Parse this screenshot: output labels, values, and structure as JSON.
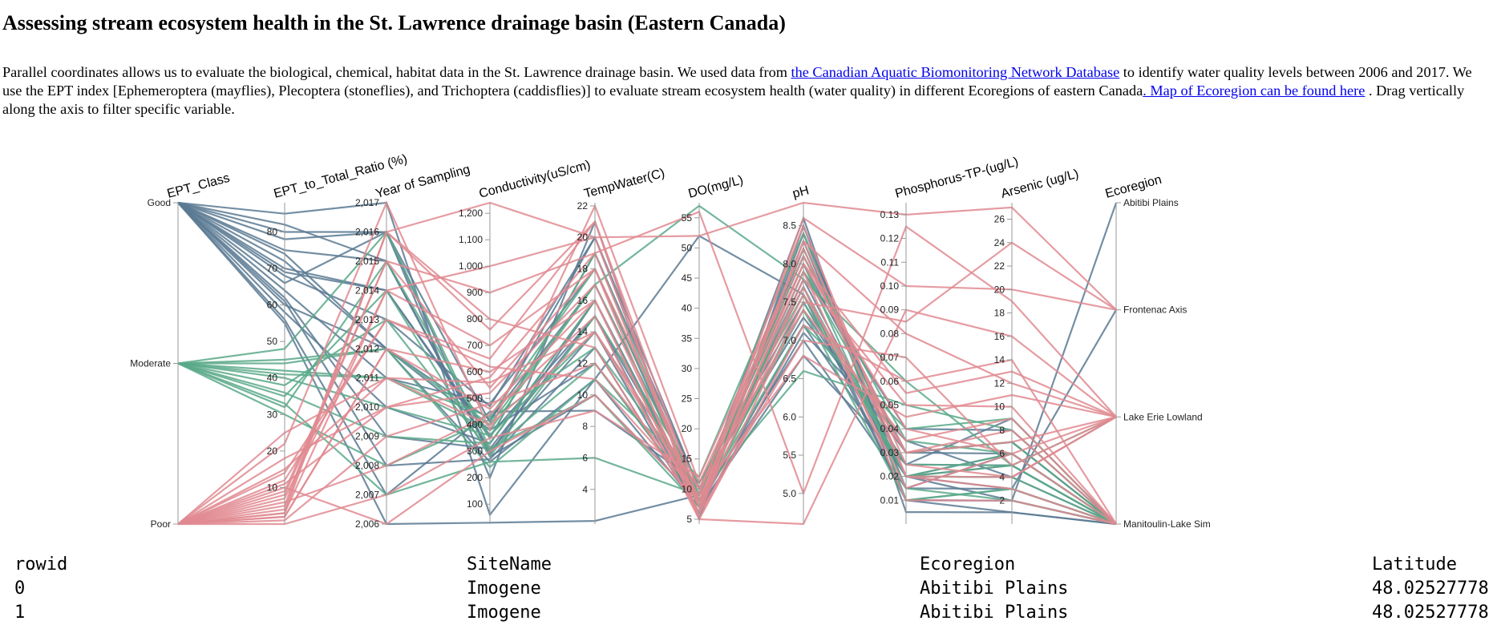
{
  "page": {
    "title": "Assessing stream ecosystem health in the St. Lawrence drainage basin (Eastern Canada)",
    "intro_before": "Parallel coordinates allows us to evaluate the biological, chemical, habitat data in the St. Lawrence drainage basin. We used data from ",
    "link1": "the Canadian Aquatic Biomonitoring Network Database",
    "intro_middle": " to identify water quality levels between 2006 and 2017. We use the EPT index [Ephemeroptera (mayflies), Plecoptera (stoneflies), and Trichoptera (caddisflies)] to evaluate stream ecosystem health (water quality) in different Ecoregions of eastern Canada",
    "link2": ". Map of Ecoregion can be found here",
    "intro_after": " . Drag vertically along the axis to filter specific variable."
  },
  "colors": {
    "Good": "#5b7a93",
    "Moderate": "#5aa98a",
    "Poor": "#e08a90",
    "axis": "#999999"
  },
  "chart_data": {
    "type": "parallel_coordinates",
    "axes": [
      {
        "name": "EPT_Class",
        "kind": "ordinal",
        "categories": [
          "Good",
          "Moderate",
          "Poor"
        ],
        "ticks": [
          "Good",
          "Moderate",
          "Poor"
        ]
      },
      {
        "name": "EPT_to_Total_Ratio (%)",
        "kind": "linear",
        "domain": [
          0,
          88
        ],
        "ticks": [
          "10",
          "20",
          "30",
          "40",
          "50",
          "60",
          "70",
          "80"
        ],
        "tick_values": [
          10,
          20,
          30,
          40,
          50,
          60,
          70,
          80
        ]
      },
      {
        "name": "Year of Sampling",
        "kind": "linear",
        "domain": [
          2006,
          2017
        ],
        "ticks": [
          "2,006",
          "2,007",
          "2,008",
          "2,009",
          "2,010",
          "2,011",
          "2,012",
          "2,013",
          "2,014",
          "2,015",
          "2,016",
          "2,017"
        ],
        "tick_values": [
          2006,
          2007,
          2008,
          2009,
          2010,
          2011,
          2012,
          2013,
          2014,
          2015,
          2016,
          2017
        ]
      },
      {
        "name": "Conductivity(uS/cm)",
        "kind": "linear",
        "domain": [
          25,
          1240
        ],
        "ticks": [
          "100",
          "200",
          "300",
          "400",
          "500",
          "600",
          "700",
          "800",
          "900",
          "1,000",
          "1,100",
          "1,200"
        ],
        "tick_values": [
          100,
          200,
          300,
          400,
          500,
          600,
          700,
          800,
          900,
          1000,
          1100,
          1200
        ]
      },
      {
        "name": "TempWater(C)",
        "kind": "linear",
        "domain": [
          1.8,
          22.2
        ],
        "ticks": [
          "4",
          "6",
          "8",
          "10",
          "12",
          "14",
          "16",
          "18",
          "20",
          "22"
        ],
        "tick_values": [
          4,
          6,
          8,
          10,
          12,
          14,
          16,
          18,
          20,
          22
        ]
      },
      {
        "name": "DO(mg/L)",
        "kind": "linear",
        "domain": [
          4.2,
          57.5
        ],
        "ticks": [
          "5",
          "10",
          "15",
          "20",
          "25",
          "30",
          "35",
          "40",
          "45",
          "50",
          "55"
        ],
        "tick_values": [
          5,
          10,
          15,
          20,
          25,
          30,
          35,
          40,
          45,
          50,
          55
        ]
      },
      {
        "name": "pH",
        "kind": "linear",
        "domain": [
          4.6,
          8.8
        ],
        "ticks": [
          "5.0",
          "5.5",
          "6.0",
          "6.5",
          "7.0",
          "7.5",
          "8.0",
          "8.5"
        ],
        "tick_values": [
          5.0,
          5.5,
          6.0,
          6.5,
          7.0,
          7.5,
          8.0,
          8.5
        ]
      },
      {
        "name": "Phosphorus-TP-(ug/L)",
        "kind": "linear",
        "domain": [
          0,
          0.135
        ],
        "ticks": [
          "0.01",
          "0.02",
          "0.03",
          "0.04",
          "0.05",
          "0.06",
          "0.07",
          "0.08",
          "0.09",
          "0.10",
          "0.11",
          "0.12",
          "0.13"
        ],
        "tick_values": [
          0.01,
          0.02,
          0.03,
          0.04,
          0.05,
          0.06,
          0.07,
          0.08,
          0.09,
          0.1,
          0.11,
          0.12,
          0.13
        ]
      },
      {
        "name": "Arsenic (ug/L)",
        "kind": "linear",
        "domain": [
          0,
          27.4
        ],
        "ticks": [
          "2",
          "4",
          "6",
          "8",
          "10",
          "12",
          "14",
          "16",
          "18",
          "20",
          "22",
          "24",
          "26"
        ],
        "tick_values": [
          2,
          4,
          6,
          8,
          10,
          12,
          14,
          16,
          18,
          20,
          22,
          24,
          26
        ]
      },
      {
        "name": "Ecoregion",
        "kind": "ordinal",
        "categories": [
          "Abitibi Plains",
          "Frontenac Axis",
          "Lake Erie Lowland",
          "Manitoulin-Lake Sim"
        ],
        "ticks": [
          "Abitibi Plains",
          "Frontenac Axis",
          "Lake Erie Lowland",
          "Manitoulin-Lake Sim"
        ]
      }
    ],
    "series_note": "Each line is one sampling record; color encodes EPT_Class",
    "lines": [
      {
        "class": "Good",
        "values": [
          "Good",
          85,
          2017,
          60,
          11,
          52,
          7.6,
          0.01,
          1,
          "Manitoulin-Lake Sim"
        ]
      },
      {
        "class": "Good",
        "values": [
          "Good",
          80,
          2016,
          280,
          10,
          8,
          7.8,
          0.02,
          2,
          "Abitibi Plains"
        ]
      },
      {
        "class": "Good",
        "values": [
          "Good",
          75,
          2015,
          300,
          14,
          6,
          8.3,
          0.015,
          3,
          "Manitoulin-Lake Sim"
        ]
      },
      {
        "class": "Good",
        "values": [
          "Good",
          72,
          2012,
          420,
          17,
          9,
          8.0,
          0.03,
          6,
          "Manitoulin-Lake Sim"
        ]
      },
      {
        "class": "Good",
        "values": [
          "Good",
          70,
          2014,
          350,
          19,
          10,
          7.4,
          0.025,
          5,
          "Manitoulin-Lake Sim"
        ]
      },
      {
        "class": "Good",
        "values": [
          "Good",
          68,
          2013,
          470,
          20,
          7,
          7.2,
          0.02,
          4,
          "Lake Erie Lowland"
        ]
      },
      {
        "class": "Good",
        "values": [
          "Good",
          66,
          2016,
          200,
          21,
          5,
          8.5,
          0.01,
          2,
          "Manitoulin-Lake Sim"
        ]
      },
      {
        "class": "Good",
        "values": [
          "Good",
          64,
          2011,
          480,
          18,
          8,
          7.9,
          0.04,
          8,
          "Manitoulin-Lake Sim"
        ]
      },
      {
        "class": "Good",
        "values": [
          "Good",
          62,
          2009,
          310,
          15,
          9,
          8.1,
          0.03,
          7,
          "Manitoulin-Lake Sim"
        ]
      },
      {
        "class": "Good",
        "values": [
          "Good",
          61,
          2008,
          270,
          13,
          6,
          8.4,
          0.02,
          3,
          "Frontenac Axis"
        ]
      },
      {
        "class": "Good",
        "values": [
          "Good",
          60,
          2012,
          380,
          12,
          8,
          7.0,
          0.015,
          6,
          "Manitoulin-Lake Sim"
        ]
      },
      {
        "class": "Good",
        "values": [
          "Good",
          58,
          2010,
          330,
          16,
          7,
          6.8,
          0.025,
          9,
          "Manitoulin-Lake Sim"
        ]
      },
      {
        "class": "Good",
        "values": [
          "Good",
          56,
          2007,
          450,
          9,
          11,
          7.5,
          0.02,
          5,
          "Manitoulin-Lake Sim"
        ]
      },
      {
        "class": "Good",
        "values": [
          "Good",
          55,
          2006,
          30,
          2,
          9,
          8.6,
          0.005,
          1,
          "Manitoulin-Lake Sim"
        ]
      },
      {
        "class": "Good",
        "values": [
          "Good",
          82,
          2015,
          290,
          16,
          8,
          7.7,
          0.01,
          2,
          "Manitoulin-Lake Sim"
        ]
      },
      {
        "class": "Good",
        "values": [
          "Good",
          78,
          2016,
          410,
          20,
          10,
          7.3,
          0.03,
          7,
          "Manitoulin-Lake Sim"
        ]
      },
      {
        "class": "Good",
        "values": [
          "Good",
          74,
          2012,
          260,
          11,
          7,
          8.2,
          0.02,
          6,
          "Manitoulin-Lake Sim"
        ]
      },
      {
        "class": "Good",
        "values": [
          "Good",
          69,
          2014,
          360,
          15,
          6,
          7.1,
          0.035,
          4,
          "Manitoulin-Lake Sim"
        ]
      },
      {
        "class": "Moderate",
        "values": [
          "Moderate",
          45,
          2012,
          400,
          17,
          57,
          7.8,
          0.06,
          5,
          "Manitoulin-Lake Sim"
        ]
      },
      {
        "class": "Moderate",
        "values": [
          "Moderate",
          42,
          2011,
          430,
          18,
          9,
          6.6,
          0.05,
          8,
          "Manitoulin-Lake Sim"
        ]
      },
      {
        "class": "Moderate",
        "values": [
          "Moderate",
          40,
          2010,
          360,
          14,
          10,
          8.2,
          0.02,
          6,
          "Manitoulin-Lake Sim"
        ]
      },
      {
        "class": "Moderate",
        "values": [
          "Moderate",
          38,
          2013,
          300,
          12,
          8,
          7.4,
          0.01,
          3,
          "Manitoulin-Lake Sim"
        ]
      },
      {
        "class": "Moderate",
        "values": [
          "Moderate",
          36,
          2009,
          330,
          16,
          7,
          7.9,
          0.03,
          7,
          "Manitoulin-Lake Sim"
        ]
      },
      {
        "class": "Moderate",
        "values": [
          "Moderate",
          35,
          2014,
          280,
          15,
          11,
          7.6,
          0.02,
          5,
          "Manitoulin-Lake Sim"
        ]
      },
      {
        "class": "Moderate",
        "values": [
          "Moderate",
          33,
          2007,
          260,
          6,
          9,
          8.0,
          0.015,
          2,
          "Manitoulin-Lake Sim"
        ]
      },
      {
        "class": "Moderate",
        "values": [
          "Moderate",
          32,
          2015,
          350,
          19,
          8,
          7.2,
          0.04,
          9,
          "Manitoulin-Lake Sim"
        ]
      },
      {
        "class": "Moderate",
        "values": [
          "Moderate",
          30,
          2008,
          420,
          13,
          10,
          7.7,
          0.02,
          4,
          "Manitoulin-Lake Sim"
        ]
      },
      {
        "class": "Moderate",
        "values": [
          "Moderate",
          44,
          2012,
          240,
          11,
          12,
          8.4,
          0.01,
          3,
          "Manitoulin-Lake Sim"
        ]
      },
      {
        "class": "Moderate",
        "values": [
          "Moderate",
          48,
          2016,
          310,
          10,
          7,
          7.5,
          0.025,
          5,
          "Lake Erie Lowland"
        ]
      },
      {
        "class": "Moderate",
        "values": [
          "Moderate",
          41,
          2011,
          380,
          17,
          9,
          8.1,
          0.035,
          6,
          "Manitoulin-Lake Sim"
        ]
      },
      {
        "class": "Poor",
        "values": [
          "Poor",
          5,
          2016,
          1240,
          20,
          52,
          8.8,
          0.13,
          27,
          "Frontenac Axis"
        ]
      },
      {
        "class": "Poor",
        "values": [
          "Poor",
          8,
          2015,
          900,
          19,
          56,
          5.0,
          0.125,
          19,
          "Lake Erie Lowland"
        ]
      },
      {
        "class": "Poor",
        "values": [
          "Poor",
          3,
          2014,
          700,
          18,
          5,
          4.6,
          0.09,
          16,
          "Lake Erie Lowland"
        ]
      },
      {
        "class": "Poor",
        "values": [
          "Poor",
          12,
          2013,
          650,
          21,
          8,
          8.3,
          0.08,
          12,
          "Lake Erie Lowland"
        ]
      },
      {
        "class": "Poor",
        "values": [
          "Poor",
          2,
          2012,
          600,
          16,
          6,
          7.8,
          0.05,
          10,
          "Manitoulin-Lake Sim"
        ]
      },
      {
        "class": "Poor",
        "values": [
          "Poor",
          15,
          2011,
          560,
          14,
          10,
          8.0,
          0.04,
          6,
          "Lake Erie Lowland"
        ]
      },
      {
        "class": "Poor",
        "values": [
          "Poor",
          18,
          2010,
          520,
          17,
          7,
          7.6,
          0.03,
          8,
          "Manitoulin-Lake Sim"
        ]
      },
      {
        "class": "Poor",
        "values": [
          "Poor",
          1,
          2009,
          480,
          12,
          9,
          8.5,
          0.02,
          4,
          "Lake Erie Lowland"
        ]
      },
      {
        "class": "Poor",
        "values": [
          "Poor",
          6,
          2008,
          440,
          15,
          5,
          7.2,
          0.06,
          14,
          "Manitoulin-Lake Sim"
        ]
      },
      {
        "class": "Poor",
        "values": [
          "Poor",
          22,
          2017,
          380,
          22,
          11,
          8.1,
          0.03,
          7,
          "Lake Erie Lowland"
        ]
      },
      {
        "class": "Poor",
        "values": [
          "Poor",
          4,
          2016,
          800,
          13,
          6,
          7.0,
          0.07,
          5,
          "Lake Erie Lowland"
        ]
      },
      {
        "class": "Poor",
        "values": [
          "Poor",
          10,
          2006,
          300,
          10,
          8,
          7.9,
          0.01,
          2,
          "Manitoulin-Lake Sim"
        ]
      },
      {
        "class": "Poor",
        "values": [
          "Poor",
          0,
          2007,
          350,
          9,
          12,
          8.2,
          0.02,
          3,
          "Manitoulin-Lake Sim"
        ]
      },
      {
        "class": "Poor",
        "values": [
          "Poor",
          7,
          2014,
          1000,
          20,
          7,
          8.6,
          0.1,
          20,
          "Frontenac Axis"
        ]
      },
      {
        "class": "Poor",
        "values": [
          "Poor",
          14,
          2013,
          620,
          11,
          9,
          6.8,
          0.045,
          11,
          "Lake Erie Lowland"
        ]
      },
      {
        "class": "Poor",
        "values": [
          "Poor",
          9,
          2015,
          540,
          18,
          10,
          7.4,
          0.035,
          9,
          "Manitoulin-Lake Sim"
        ]
      },
      {
        "class": "Poor",
        "values": [
          "Poor",
          2,
          2012,
          460,
          16,
          6,
          8.3,
          0.025,
          4,
          "Lake Erie Lowland"
        ]
      },
      {
        "class": "Poor",
        "values": [
          "Poor",
          25,
          2011,
          400,
          14,
          8,
          7.7,
          0.015,
          6,
          "Manitoulin-Lake Sim"
        ]
      },
      {
        "class": "Poor",
        "values": [
          "Poor",
          11,
          2010,
          580,
          19,
          7,
          8.0,
          0.055,
          13,
          "Lake Erie Lowland"
        ]
      },
      {
        "class": "Poor",
        "values": [
          "Poor",
          3,
          2016,
          760,
          21,
          5,
          7.5,
          0.085,
          24,
          "Frontenac Axis"
        ]
      }
    ]
  },
  "table": {
    "headers": [
      "rowid",
      "SiteName",
      "Ecoregion",
      "Latitude"
    ],
    "rows": [
      [
        "0",
        "Imogene",
        "Abitibi Plains",
        "48.02527778"
      ],
      [
        "1",
        "Imogene",
        "Abitibi Plains",
        "48.02527778"
      ]
    ]
  }
}
